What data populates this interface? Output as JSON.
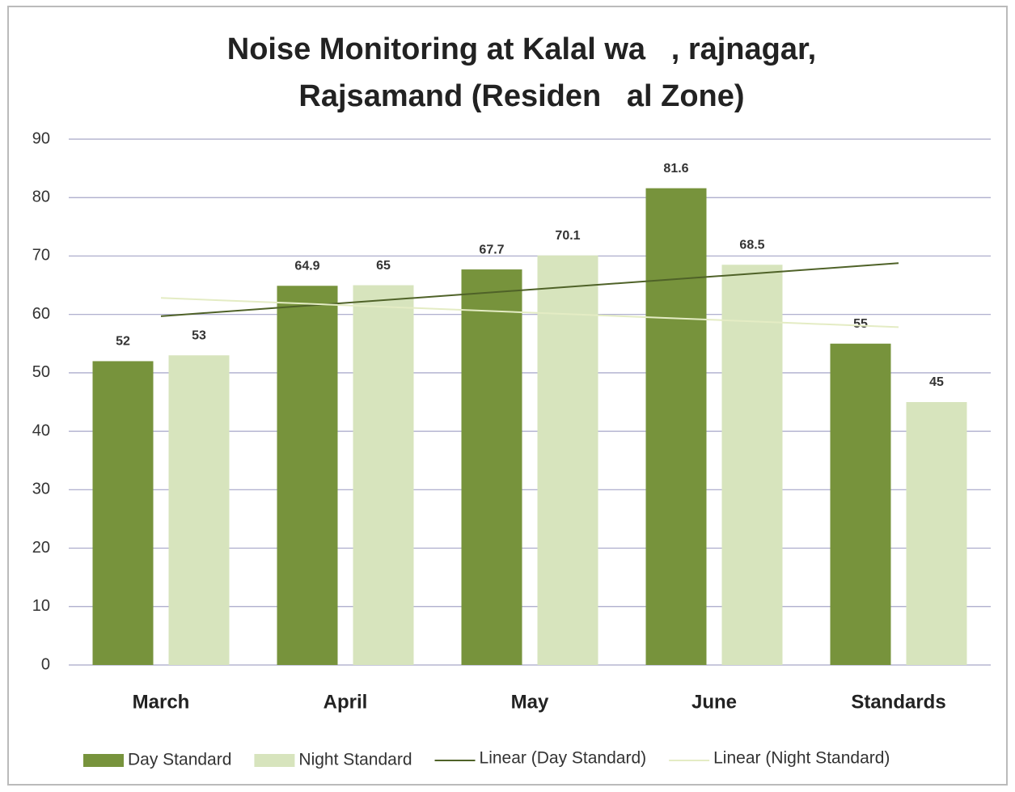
{
  "chart_data": {
    "type": "bar",
    "title": [
      "Noise Monitoring at Kalal wa   , rajnagar,",
      "Rajsamand (Residen   al Zone)"
    ],
    "categories": [
      "March",
      "April",
      "May",
      "June",
      "Standards"
    ],
    "series": [
      {
        "name": "Day Standard",
        "color": "#77933c",
        "values": [
          52,
          64.9,
          67.7,
          81.6,
          55
        ]
      },
      {
        "name": "Night Standard",
        "color": "#d7e4bd",
        "values": [
          53,
          65,
          70.1,
          68.5,
          45
        ]
      }
    ],
    "trendlines": [
      {
        "name": "Linear (Day Standard)",
        "series": 0,
        "color": "#4f6228"
      },
      {
        "name": "Linear (Night Standard)",
        "series": 1,
        "color": "#e4ecc4"
      }
    ],
    "ylim": [
      0,
      90
    ],
    "yticks": [
      0,
      10,
      20,
      30,
      40,
      50,
      60,
      70,
      80,
      90
    ],
    "grid": true
  }
}
